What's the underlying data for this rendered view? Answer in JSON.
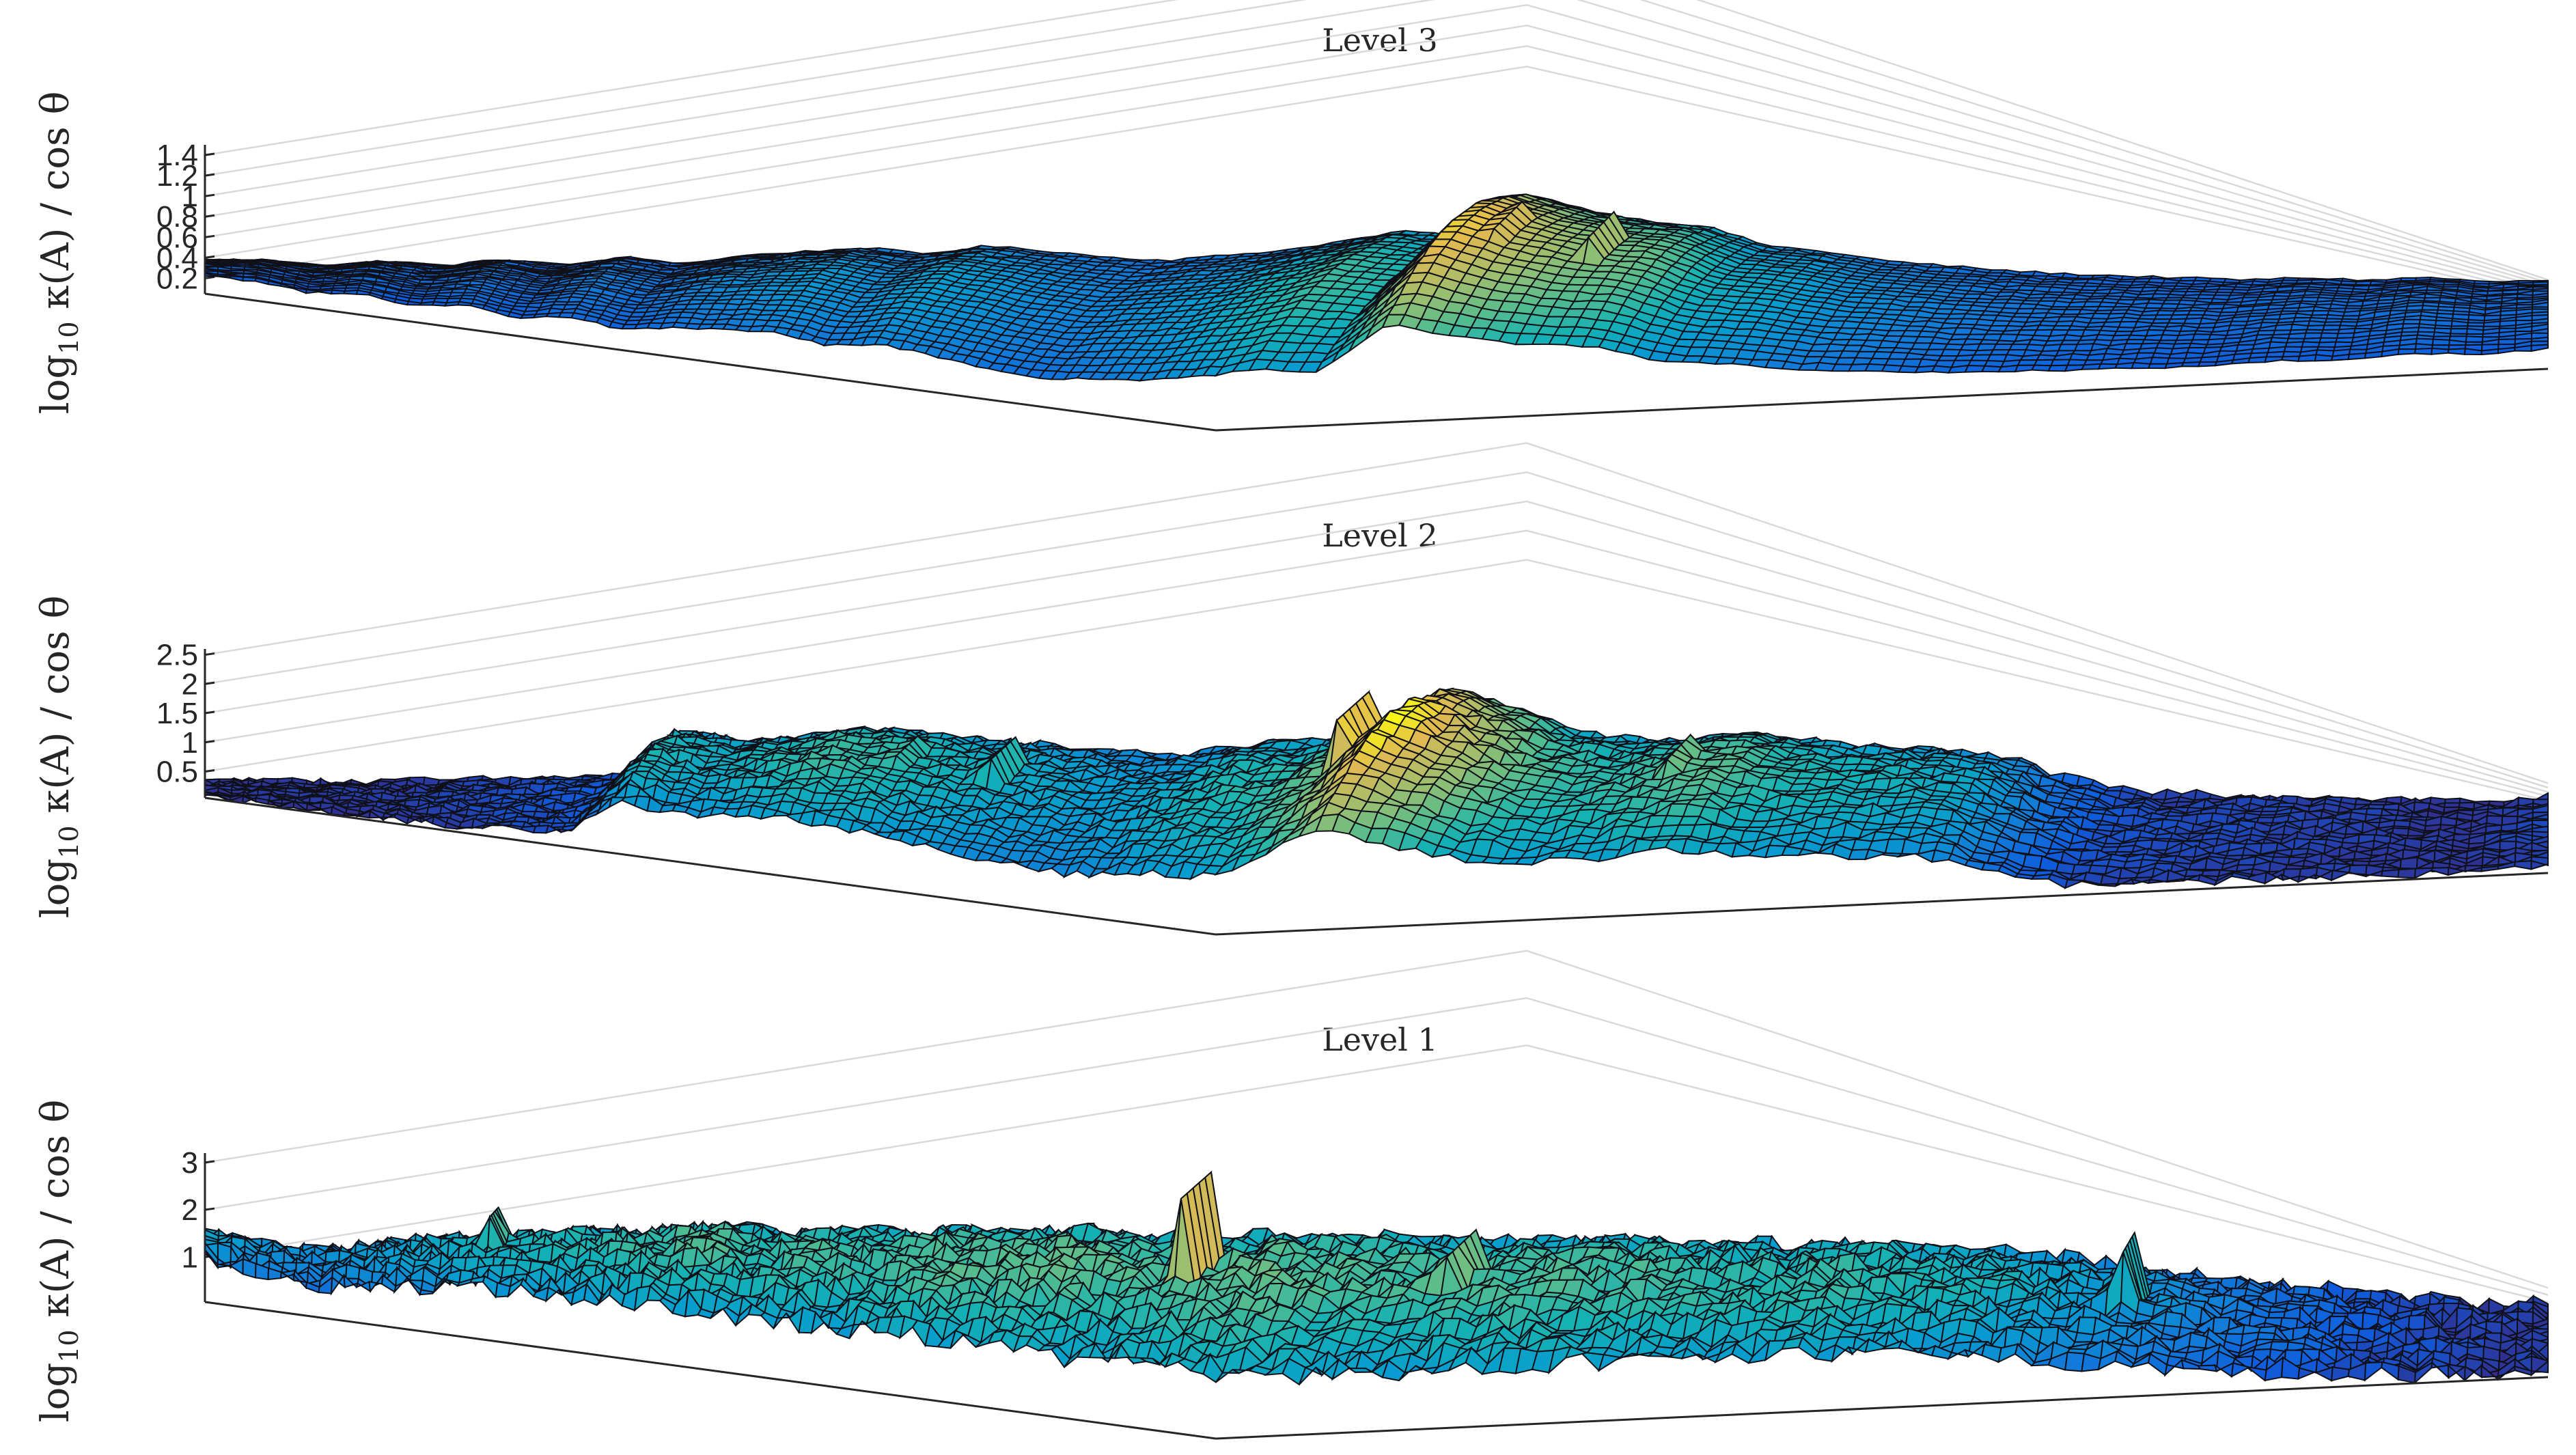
{
  "chart_data": [
    {
      "type": "surface",
      "title": "Level 3",
      "zlabel": {
        "func": "log",
        "sub": "10",
        "rest": " κ(A) / cos θ"
      },
      "zticks": [
        "0.2",
        "0.4",
        "0.6",
        "0.8",
        "1",
        "1.2",
        "1.4"
      ],
      "zlim": [
        0.05,
        1.5
      ],
      "grid": true,
      "colormap": "parula",
      "z_profile": [
        0.3,
        0.32,
        0.26,
        0.34,
        0.28,
        0.38,
        0.3,
        0.42,
        0.34,
        0.46,
        0.52,
        0.58,
        0.5,
        0.62,
        0.56,
        0.48,
        0.44,
        0.52,
        0.6,
        0.74,
        0.88,
        0.8,
        1.42,
        1.2,
        1.05,
        0.98,
        0.72,
        0.64,
        0.52,
        0.46,
        0.4,
        0.36,
        0.34,
        0.32,
        0.3,
        0.34,
        0.31,
        0.36,
        0.3,
        0.33
      ],
      "peak_values": [
        {
          "x": 0.58,
          "z": 1.5
        },
        {
          "x": 0.62,
          "z": 1.38
        }
      ]
    },
    {
      "type": "surface",
      "title": "Level 2",
      "zlabel": {
        "func": "log",
        "sub": "10",
        "rest": " κ(A) / cos θ"
      },
      "zticks": [
        "0.5",
        "1",
        "1.5",
        "2",
        "2.5"
      ],
      "zlim": [
        0.05,
        2.6
      ],
      "grid": true,
      "colormap": "parula",
      "z_profile": [
        0.1,
        0.12,
        0.15,
        0.14,
        0.2,
        0.22,
        0.3,
        0.35,
        1.4,
        1.2,
        1.3,
        1.5,
        1.45,
        1.3,
        1.2,
        1.1,
        1.0,
        1.1,
        1.35,
        1.4,
        1.7,
        2.6,
        2.1,
        1.6,
        1.4,
        1.5,
        1.65,
        1.4,
        1.3,
        1.25,
        1.1,
        0.6,
        0.3,
        0.25,
        0.22,
        0.2,
        0.18,
        0.15,
        0.14,
        0.22
      ],
      "peak_values": [
        {
          "x": 0.52,
          "z": 2.9
        },
        {
          "x": 0.54,
          "z": 2.8
        },
        {
          "x": 0.36,
          "z": 2.0
        },
        {
          "x": 0.32,
          "z": 1.7
        },
        {
          "x": 0.65,
          "z": 1.8
        }
      ]
    },
    {
      "type": "surface",
      "title": "Level 1",
      "zlabel": {
        "func": "log",
        "sub": "10",
        "rest": " κ(A) / cos θ"
      },
      "zticks": [
        "1",
        "2",
        "3"
      ],
      "zlim": [
        0.05,
        3.2
      ],
      "grid": true,
      "colormap": "parula",
      "z_profile": [
        1.3,
        1.1,
        1.0,
        1.2,
        1.4,
        1.5,
        1.6,
        1.7,
        1.8,
        1.9,
        1.75,
        1.85,
        1.8,
        1.95,
        1.9,
        2.0,
        1.9,
        1.85,
        1.95,
        2.0,
        1.9,
        1.85,
        1.8,
        1.9,
        1.85,
        1.8,
        1.75,
        1.7,
        1.8,
        1.65,
        1.55,
        1.4,
        1.2,
        1.0,
        0.8,
        0.6,
        0.4,
        0.3,
        0.2,
        0.15
      ],
      "peak_values": [
        {
          "x": 0.45,
          "z": 3.6
        },
        {
          "x": 0.56,
          "z": 3.1
        },
        {
          "x": 0.13,
          "z": 2.4
        },
        {
          "x": 0.83,
          "z": 2.5
        }
      ]
    }
  ]
}
